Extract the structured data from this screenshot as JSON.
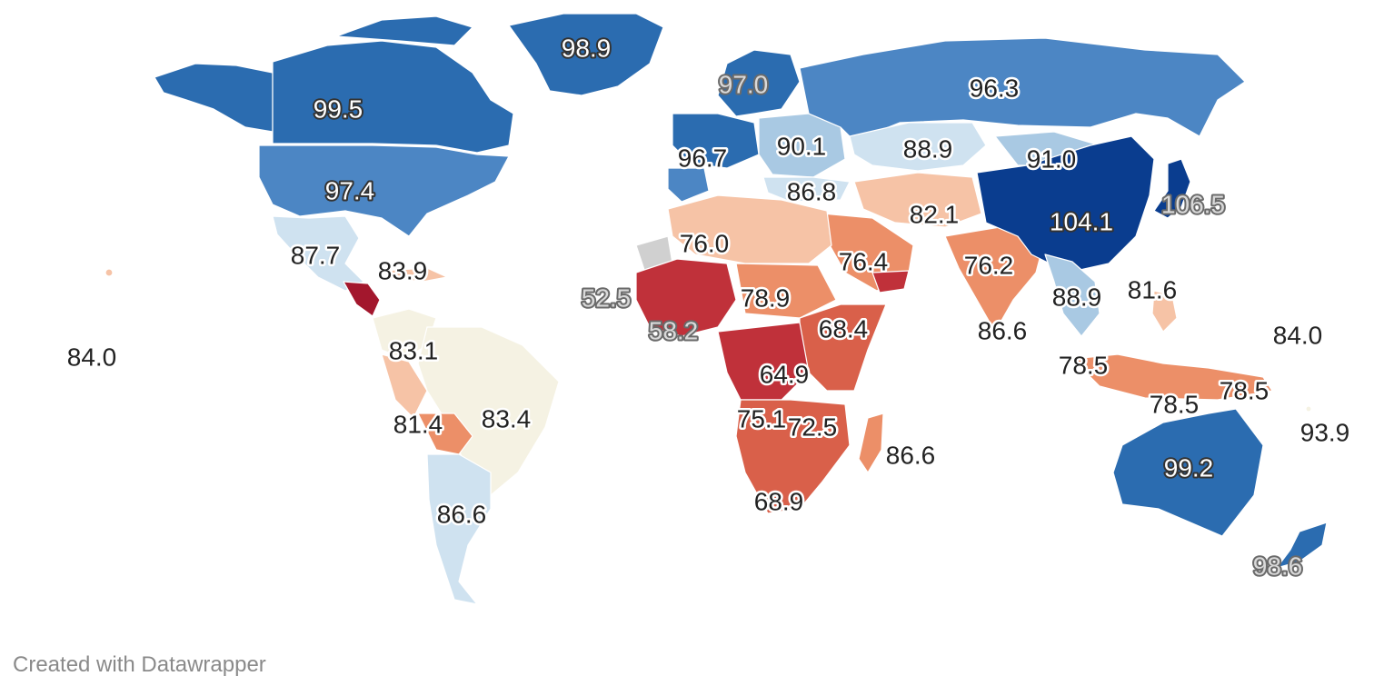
{
  "map": {
    "colors": {
      "deep_blue": "#0a3d8f",
      "blue": "#2b6cb0",
      "mid_blue": "#4c86c4",
      "light_blue": "#a9c9e3",
      "pale_blue": "#cfe2f0",
      "cream": "#f5f2e3",
      "pale_orange": "#f6c3a6",
      "orange": "#ec8f68",
      "red_orange": "#d9604a",
      "red": "#c0313a",
      "dark_red": "#a3172d"
    },
    "labels": [
      {
        "id": "greenland",
        "text": "98.9",
        "style": "light"
      },
      {
        "id": "canada",
        "text": "99.5",
        "style": "light"
      },
      {
        "id": "usa",
        "text": "97.4",
        "style": "light"
      },
      {
        "id": "mexico",
        "text": "87.7",
        "style": "dark"
      },
      {
        "id": "cuba",
        "text": "83.9",
        "style": "dark"
      },
      {
        "id": "hawaii",
        "text": "84.0",
        "style": "dark"
      },
      {
        "id": "colombia",
        "text": "83.1",
        "style": "dark"
      },
      {
        "id": "bolivia",
        "text": "81.4",
        "style": "dark"
      },
      {
        "id": "brazil",
        "text": "83.4",
        "style": "dark"
      },
      {
        "id": "argentina",
        "text": "86.6",
        "style": "dark"
      },
      {
        "id": "scandinavia",
        "text": "97.0",
        "style": "ghost"
      },
      {
        "id": "russia",
        "text": "96.3",
        "style": "dark"
      },
      {
        "id": "western_europe",
        "text": "96.7",
        "style": "dark"
      },
      {
        "id": "eastern_europe",
        "text": "90.1",
        "style": "dark"
      },
      {
        "id": "kazakhstan",
        "text": "88.9",
        "style": "dark"
      },
      {
        "id": "mongolia",
        "text": "91.0",
        "style": "dark"
      },
      {
        "id": "turkey",
        "text": "86.8",
        "style": "dark"
      },
      {
        "id": "iran",
        "text": "82.1",
        "style": "dark"
      },
      {
        "id": "china",
        "text": "104.1",
        "style": "light"
      },
      {
        "id": "japan",
        "text": "106.5",
        "style": "ghost"
      },
      {
        "id": "mauritania",
        "text": "52.5",
        "style": "ghost"
      },
      {
        "id": "algeria",
        "text": "76.0",
        "style": "dark"
      },
      {
        "id": "saudi",
        "text": "76.4",
        "style": "dark"
      },
      {
        "id": "pakistan",
        "text": "76.2",
        "style": "dark"
      },
      {
        "id": "chad",
        "text": "78.9",
        "style": "dark"
      },
      {
        "id": "guinea",
        "text": "58.2",
        "style": "ghost"
      },
      {
        "id": "ethiopia",
        "text": "68.4",
        "style": "dark"
      },
      {
        "id": "india",
        "text": "86.6",
        "style": "dark"
      },
      {
        "id": "thailand",
        "text": "88.9",
        "style": "dark"
      },
      {
        "id": "philippines",
        "text": "81.6",
        "style": "dark"
      },
      {
        "id": "micronesia",
        "text": "84.0",
        "style": "dark"
      },
      {
        "id": "congo",
        "text": "64.9",
        "style": "dark"
      },
      {
        "id": "malaysia",
        "text": "78.5",
        "style": "dark"
      },
      {
        "id": "indonesia",
        "text": "78.5",
        "style": "dark"
      },
      {
        "id": "png",
        "text": "78.5",
        "style": "dark"
      },
      {
        "id": "angola",
        "text": "75.1",
        "style": "dark"
      },
      {
        "id": "zambia",
        "text": "72.5",
        "style": "dark"
      },
      {
        "id": "madagascar",
        "text": "86.6",
        "style": "dark"
      },
      {
        "id": "fiji",
        "text": "93.9",
        "style": "dark"
      },
      {
        "id": "australia",
        "text": "99.2",
        "style": "light"
      },
      {
        "id": "south_africa",
        "text": "68.9",
        "style": "dark"
      },
      {
        "id": "new_zealand",
        "text": "98.6",
        "style": "ghost"
      }
    ]
  },
  "footer": {
    "credit": "Created with Datawrapper"
  }
}
